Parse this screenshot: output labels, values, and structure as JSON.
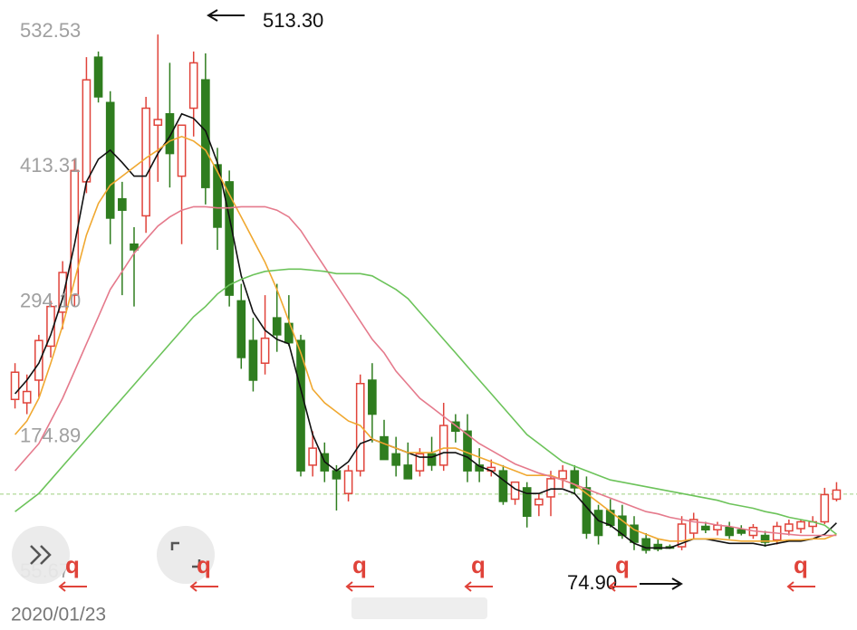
{
  "chart_data": {
    "type": "candlestick",
    "categories": [
      "2020/01/23",
      null,
      null,
      null,
      null,
      null,
      null,
      null,
      null,
      null,
      null,
      null,
      null,
      null,
      null,
      null,
      null,
      null,
      null,
      null,
      null,
      null,
      null,
      null,
      null,
      null,
      null,
      null,
      null,
      null,
      null,
      null,
      null,
      null,
      null,
      null,
      null,
      null,
      null,
      null,
      null,
      null,
      null,
      null,
      null,
      null,
      null,
      null,
      null,
      null,
      null,
      null,
      null,
      null,
      null,
      null,
      null,
      null,
      null,
      null,
      null,
      null,
      null,
      null,
      null,
      null,
      null,
      null,
      null,
      null
    ],
    "open": [
      208,
      205,
      225,
      255,
      285,
      300,
      400,
      510,
      470,
      385,
      345,
      370,
      450,
      460,
      405,
      465,
      490,
      415,
      400,
      295,
      260,
      240,
      280,
      275,
      260,
      150,
      160,
      145,
      125,
      145,
      225,
      175,
      160,
      150,
      145,
      160,
      150,
      188,
      180,
      150,
      145,
      145,
      120,
      130,
      115,
      122,
      138,
      145,
      130,
      110,
      110,
      105,
      97,
      85,
      80,
      78,
      78,
      90,
      96,
      93,
      95,
      93,
      88,
      88,
      84,
      92,
      94,
      96,
      100,
      120
    ],
    "high": [
      240,
      230,
      265,
      295,
      330,
      420,
      510,
      515,
      480,
      400,
      360,
      475,
      530,
      505,
      445,
      515,
      513.3,
      430,
      410,
      310,
      280,
      300,
      310,
      300,
      265,
      180,
      170,
      150,
      150,
      230,
      240,
      190,
      175,
      170,
      165,
      175,
      205,
      195,
      195,
      165,
      155,
      150,
      135,
      135,
      125,
      145,
      150,
      150,
      140,
      115,
      120,
      115,
      105,
      90,
      85,
      80,
      105,
      108,
      100,
      100,
      100,
      97,
      98,
      92,
      100,
      102,
      102,
      105,
      130,
      135
    ],
    "low": [
      200,
      195,
      210,
      245,
      270,
      290,
      390,
      470,
      345,
      300,
      290,
      355,
      400,
      395,
      345,
      440,
      380,
      340,
      290,
      235,
      215,
      230,
      250,
      255,
      140,
      140,
      135,
      110,
      118,
      140,
      170,
      155,
      140,
      140,
      140,
      145,
      145,
      170,
      135,
      135,
      140,
      115,
      115,
      95,
      105,
      105,
      130,
      125,
      85,
      80,
      95,
      85,
      75,
      72,
      74,
      76,
      74.9,
      85,
      90,
      88,
      85,
      88,
      85,
      78,
      80,
      88,
      90,
      90,
      98,
      118
    ],
    "close": [
      232,
      215,
      260,
      290,
      320,
      410,
      490,
      475,
      368,
      375,
      340,
      465,
      455,
      425,
      450,
      505,
      395,
      360,
      300,
      245,
      225,
      262,
      265,
      258,
      145,
      165,
      145,
      138,
      145,
      222,
      195,
      155,
      150,
      138,
      160,
      150,
      185,
      180,
      145,
      145,
      148,
      118,
      135,
      105,
      120,
      138,
      145,
      130,
      90,
      88,
      97,
      88,
      82,
      75,
      76,
      77,
      98,
      102,
      93,
      97,
      88,
      90,
      95,
      82,
      96,
      98,
      100,
      100,
      124,
      128
    ],
    "up_color": "#e0433a",
    "down_color": "#2f7d1f",
    "series": [
      {
        "color": "#111111",
        "values": [
          213,
          225,
          240,
          265,
          297,
          345,
          400,
          420,
          428,
          417,
          405,
          405,
          425,
          440,
          460,
          456,
          445,
          417,
          369,
          317,
          285,
          269,
          261,
          257,
          217,
          177,
          153,
          145,
          153,
          169,
          173,
          169,
          165,
          161,
          157,
          157,
          161,
          161,
          157,
          149,
          145,
          137,
          129,
          125,
          125,
          129,
          129,
          125,
          113,
          101,
          97,
          89,
          81,
          77,
          77,
          77,
          81,
          85,
          85,
          83,
          81,
          81,
          81,
          79,
          81,
          83,
          83,
          85,
          89,
          99
        ]
      },
      {
        "color": "#f0a830",
        "values": [
          177,
          189,
          209,
          240,
          273,
          313,
          353,
          381,
          397,
          405,
          413,
          421,
          428,
          436,
          440,
          436,
          428,
          409,
          389,
          369,
          349,
          329,
          305,
          277,
          249,
          217,
          205,
          197,
          189,
          185,
          173,
          169,
          165,
          161,
          161,
          161,
          165,
          165,
          161,
          157,
          153,
          149,
          145,
          141,
          141,
          141,
          137,
          133,
          125,
          117,
          109,
          101,
          93,
          89,
          85,
          83,
          83,
          85,
          85,
          85,
          84,
          83,
          83,
          83,
          83,
          84,
          84,
          85,
          85,
          89
        ]
      },
      {
        "color": "#e57a8c",
        "values": [
          145,
          157,
          169,
          189,
          209,
          233,
          257,
          281,
          305,
          321,
          337,
          349,
          361,
          369,
          375,
          378,
          378,
          377,
          377,
          378,
          378,
          378,
          375,
          369,
          357,
          341,
          325,
          309,
          293,
          277,
          261,
          249,
          233,
          221,
          209,
          201,
          193,
          185,
          177,
          169,
          163,
          157,
          151,
          147,
          143,
          140,
          137,
          133,
          129,
          125,
          121,
          117,
          113,
          109,
          107,
          104,
          102,
          100,
          99,
          97,
          96,
          94,
          92,
          91,
          90,
          89,
          88,
          88,
          88,
          88
        ]
      },
      {
        "color": "#6cc35a",
        "values": [
          109,
          117,
          125,
          137,
          149,
          161,
          173,
          185,
          197,
          209,
          221,
          233,
          245,
          257,
          269,
          281,
          290,
          301,
          309,
          314,
          318,
          321,
          322,
          323,
          323,
          322,
          321,
          319,
          319,
          319,
          317,
          311,
          305,
          297,
          285,
          273,
          261,
          249,
          237,
          225,
          213,
          201,
          189,
          177,
          169,
          161,
          153,
          149,
          145,
          141,
          137,
          135,
          133,
          131,
          129,
          127,
          125,
          123,
          121,
          119,
          116,
          114,
          112,
          109,
          107,
          104,
          102,
          100,
          97,
          89
        ]
      }
    ],
    "ylim": [
      29.3,
      560.46
    ],
    "yticks": [
      532.53,
      413.31,
      {
        "value": 294.1,
        "label": "294.10"
      },
      174.89,
      55.67
    ],
    "grid": false,
    "reference_line": 124.4,
    "annotations": [
      "513.30",
      "74.90"
    ],
    "event_markers": [
      "q",
      "q",
      "q",
      "q",
      "q",
      "q"
    ]
  }
}
